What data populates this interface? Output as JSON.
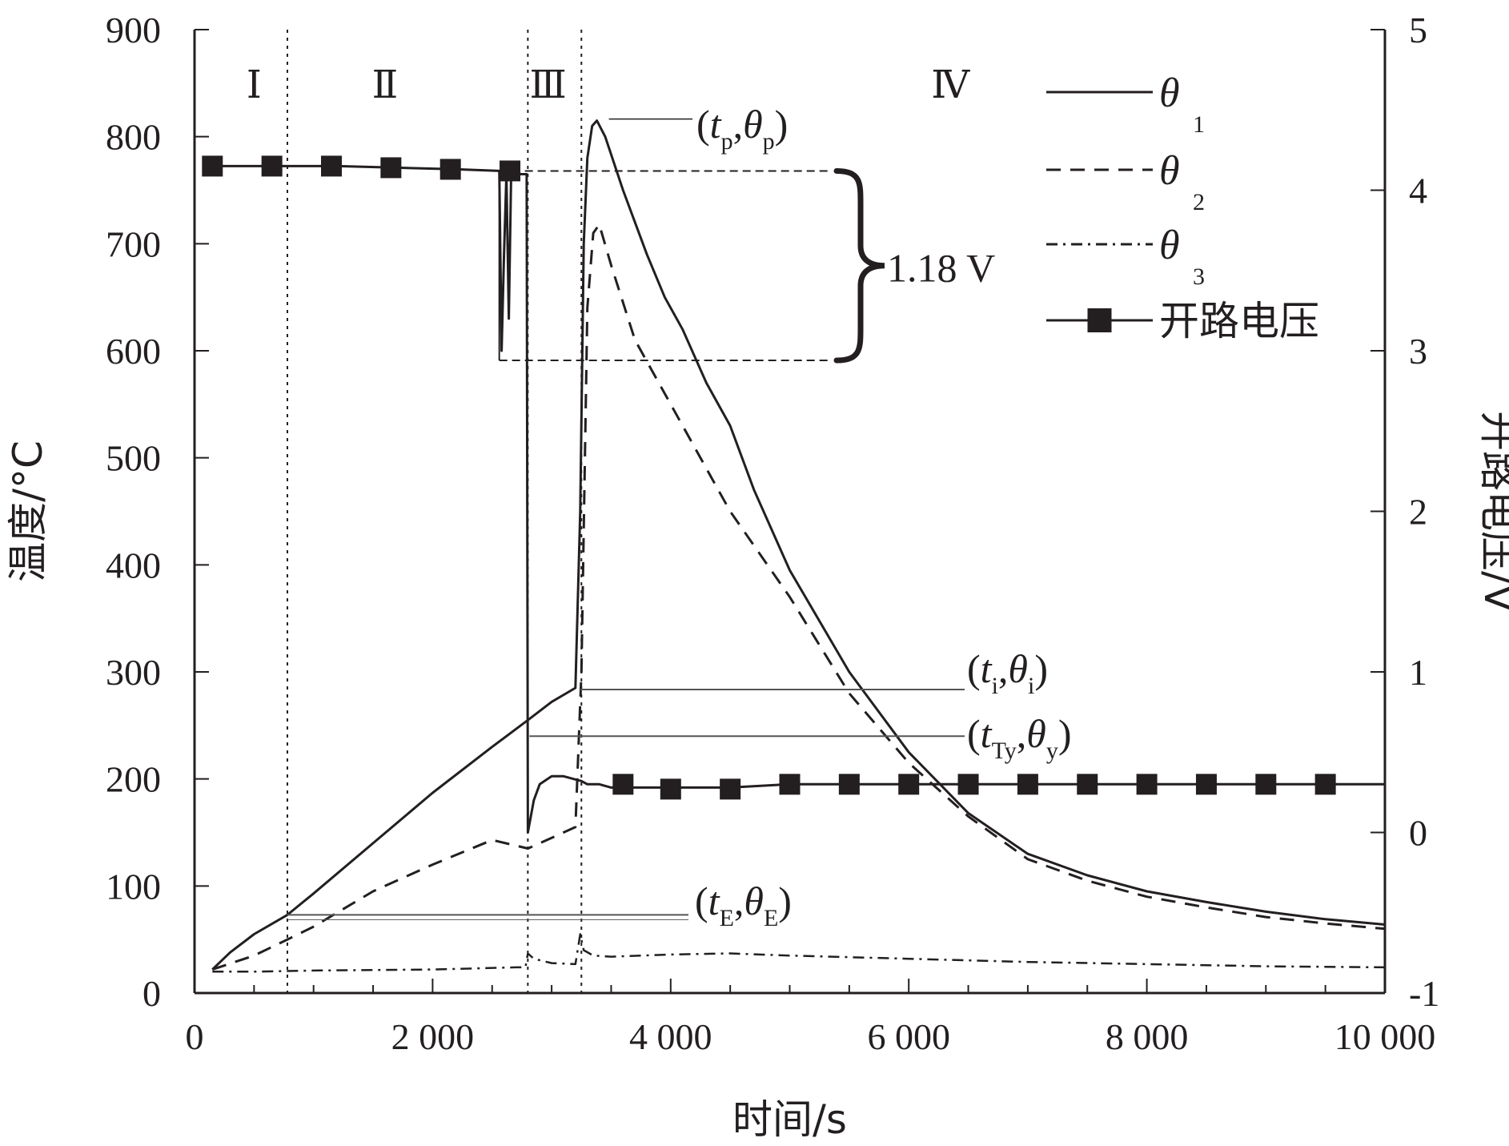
{
  "chart_data": {
    "type": "line",
    "xlabel": "时间/s",
    "ylabel": "温度/°C",
    "y2label": "开路电压/V",
    "xlim": [
      0,
      10000
    ],
    "ylim": [
      0,
      900
    ],
    "y2lim": [
      -1,
      5
    ],
    "xticks": [
      {
        "v": 0,
        "label": "0"
      },
      {
        "v": 2000,
        "label": "2 000"
      },
      {
        "v": 4000,
        "label": "4 000"
      },
      {
        "v": 6000,
        "label": "6 000"
      },
      {
        "v": 8000,
        "label": "8 000"
      },
      {
        "v": 10000,
        "label": "10 000"
      }
    ],
    "yticks": [
      {
        "v": 0,
        "label": "0"
      },
      {
        "v": 100,
        "label": "100"
      },
      {
        "v": 200,
        "label": "200"
      },
      {
        "v": 300,
        "label": "300"
      },
      {
        "v": 400,
        "label": "400"
      },
      {
        "v": 500,
        "label": "500"
      },
      {
        "v": 600,
        "label": "600"
      },
      {
        "v": 700,
        "label": "700"
      },
      {
        "v": 800,
        "label": "800"
      },
      {
        "v": 900,
        "label": "900"
      }
    ],
    "y2ticks": [
      {
        "v": -1,
        "label": "-1"
      },
      {
        "v": 0,
        "label": "0"
      },
      {
        "v": 1,
        "label": "1"
      },
      {
        "v": 2,
        "label": "2"
      },
      {
        "v": 3,
        "label": "3"
      },
      {
        "v": 4,
        "label": "4"
      },
      {
        "v": 5,
        "label": "5"
      }
    ],
    "stages": [
      {
        "label": "Ⅰ",
        "x": 500
      },
      {
        "label": "Ⅱ",
        "x": 1600
      },
      {
        "label": "Ⅲ",
        "x": 2970
      },
      {
        "label": "Ⅳ",
        "x": 6350
      }
    ],
    "stage_dividers": [
      780,
      2800,
      3250
    ],
    "legend": [
      {
        "sym": "θ",
        "sub": "1",
        "style": "solid"
      },
      {
        "sym": "θ",
        "sub": "2",
        "style": "dashed"
      },
      {
        "sym": "θ",
        "sub": "3",
        "style": "dashdot"
      },
      {
        "text": "开路电压",
        "style": "marker"
      }
    ],
    "series": [
      {
        "name": "θ1",
        "axis": "left",
        "style": "solid",
        "points": [
          [
            150,
            22
          ],
          [
            300,
            38
          ],
          [
            500,
            55
          ],
          [
            780,
            73
          ],
          [
            1000,
            93
          ],
          [
            1500,
            140
          ],
          [
            2000,
            187
          ],
          [
            2500,
            230
          ],
          [
            2800,
            255
          ],
          [
            3000,
            272
          ],
          [
            3200,
            285
          ],
          [
            3240,
            450
          ],
          [
            3270,
            700
          ],
          [
            3300,
            780
          ],
          [
            3340,
            810
          ],
          [
            3380,
            815
          ],
          [
            3450,
            800
          ],
          [
            3600,
            750
          ],
          [
            3800,
            690
          ],
          [
            3950,
            650
          ],
          [
            4100,
            620
          ],
          [
            4300,
            570
          ],
          [
            4500,
            530
          ],
          [
            4700,
            470
          ],
          [
            5000,
            395
          ],
          [
            5500,
            300
          ],
          [
            6000,
            225
          ],
          [
            6500,
            168
          ],
          [
            7000,
            130
          ],
          [
            7500,
            110
          ],
          [
            8000,
            95
          ],
          [
            8500,
            85
          ],
          [
            9000,
            76
          ],
          [
            9500,
            69
          ],
          [
            10000,
            64
          ]
        ]
      },
      {
        "name": "θ2",
        "axis": "left",
        "style": "dashed",
        "points": [
          [
            150,
            22
          ],
          [
            500,
            35
          ],
          [
            780,
            50
          ],
          [
            1000,
            62
          ],
          [
            1500,
            95
          ],
          [
            2000,
            120
          ],
          [
            2500,
            143
          ],
          [
            2800,
            135
          ],
          [
            3000,
            145
          ],
          [
            3200,
            155
          ],
          [
            3250,
            300
          ],
          [
            3300,
            640
          ],
          [
            3350,
            710
          ],
          [
            3400,
            718
          ],
          [
            3500,
            680
          ],
          [
            3700,
            610
          ],
          [
            4000,
            550
          ],
          [
            4500,
            450
          ],
          [
            5000,
            370
          ],
          [
            5500,
            280
          ],
          [
            6000,
            215
          ],
          [
            6500,
            165
          ],
          [
            7000,
            125
          ],
          [
            7500,
            105
          ],
          [
            8000,
            90
          ],
          [
            8500,
            80
          ],
          [
            9000,
            71
          ],
          [
            9500,
            65
          ],
          [
            10000,
            60
          ]
        ]
      },
      {
        "name": "θ3",
        "axis": "left",
        "style": "dashdot",
        "points": [
          [
            150,
            20
          ],
          [
            500,
            20
          ],
          [
            1000,
            21
          ],
          [
            2000,
            22
          ],
          [
            2700,
            24
          ],
          [
            2780,
            24
          ],
          [
            2800,
            37
          ],
          [
            2850,
            32
          ],
          [
            3000,
            28
          ],
          [
            3200,
            27
          ],
          [
            3240,
            55
          ],
          [
            3270,
            40
          ],
          [
            3350,
            35
          ],
          [
            3500,
            34
          ],
          [
            4000,
            36
          ],
          [
            4500,
            37
          ],
          [
            5000,
            35
          ],
          [
            6000,
            32
          ],
          [
            7000,
            29
          ],
          [
            8000,
            27
          ],
          [
            9000,
            25
          ],
          [
            10000,
            24
          ]
        ]
      },
      {
        "name": "开路电压",
        "axis": "right",
        "style": "marker",
        "points": [
          [
            150,
            4.15
          ],
          [
            700,
            4.15
          ],
          [
            1200,
            4.15
          ],
          [
            1700,
            4.14
          ],
          [
            2200,
            4.13
          ],
          [
            2560,
            4.12
          ],
          [
            2580,
            3.0
          ],
          [
            2600,
            3.6
          ],
          [
            2620,
            4.1
          ],
          [
            2640,
            3.2
          ],
          [
            2660,
            4.1
          ],
          [
            2700,
            4.12
          ],
          [
            2740,
            4.1
          ],
          [
            2790,
            4.1
          ],
          [
            2800,
            0.0
          ],
          [
            2850,
            0.2
          ],
          [
            2900,
            0.3
          ],
          [
            3000,
            0.35
          ],
          [
            3100,
            0.35
          ],
          [
            3200,
            0.33
          ],
          [
            3250,
            0.32
          ],
          [
            3300,
            0.3
          ],
          [
            3400,
            0.3
          ],
          [
            3500,
            0.28
          ],
          [
            4000,
            0.28
          ],
          [
            4500,
            0.28
          ],
          [
            5000,
            0.3
          ],
          [
            6000,
            0.3
          ],
          [
            7000,
            0.3
          ],
          [
            8000,
            0.3
          ],
          [
            9000,
            0.3
          ],
          [
            10000,
            0.3
          ]
        ],
        "markers": [
          [
            150,
            4.15
          ],
          [
            650,
            4.15
          ],
          [
            1150,
            4.15
          ],
          [
            1650,
            4.14
          ],
          [
            2150,
            4.13
          ],
          [
            2650,
            4.12
          ],
          [
            3600,
            0.3
          ],
          [
            4000,
            0.27
          ],
          [
            4500,
            0.27
          ],
          [
            5000,
            0.3
          ],
          [
            5500,
            0.3
          ],
          [
            6000,
            0.3
          ],
          [
            6500,
            0.3
          ],
          [
            7000,
            0.3
          ],
          [
            7500,
            0.3
          ],
          [
            8000,
            0.3
          ],
          [
            8500,
            0.3
          ],
          [
            9000,
            0.3
          ],
          [
            9500,
            0.3
          ]
        ]
      }
    ],
    "annotations": {
      "peak": {
        "t": "t",
        "ts": "p",
        "th": "θ",
        "ths": "p",
        "x": 3380,
        "y": 815
      },
      "ignite": {
        "t": "t",
        "ts": "i",
        "th": "θ",
        "ths": "i",
        "x": 3240,
        "y": 285
      },
      "yield": {
        "t": "t",
        "ts": "Ty",
        "th": "θ",
        "ths": "y",
        "x": 2780,
        "y": 240
      },
      "event": {
        "t": "t",
        "ts": "E",
        "th": "θ",
        "ths": "E",
        "x": 780,
        "y": 73
      },
      "voltage_drop": {
        "label": "1.18 V",
        "v_high": 4.12,
        "v_low": 2.94
      }
    }
  }
}
